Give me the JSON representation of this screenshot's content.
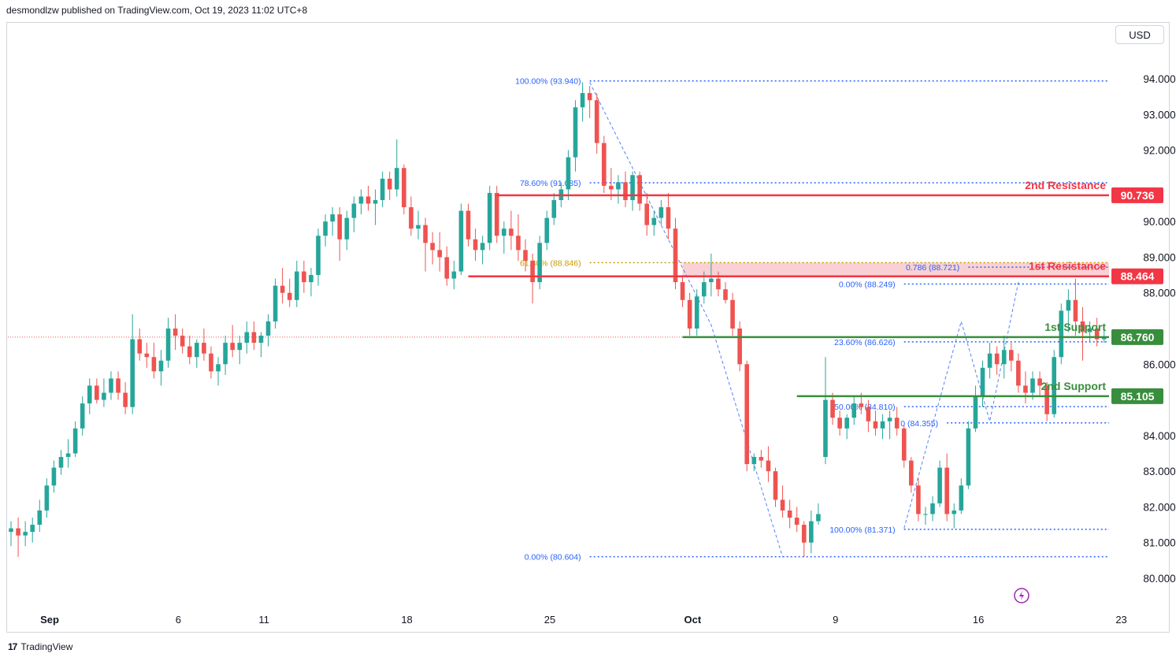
{
  "header": {
    "text": "desmondlzw published on TradingView.com, Oct 19, 2023 11:02 UTC+8"
  },
  "currency_button": "USD",
  "footer": {
    "logo_mark": "17",
    "brand": "TradingView"
  },
  "colors": {
    "up": "#26a69a",
    "down": "#ef5350",
    "resistance": "#f23645",
    "support": "#388e3c",
    "fib": "#2962ff",
    "fib_gold": "#c79a00",
    "zone_fill": "#f8c9cd"
  },
  "chart_data": {
    "type": "candlestick",
    "ylim": [
      79.5,
      95.0
    ],
    "y_ticks": [
      "94.000",
      "93.000",
      "92.000",
      "91.000",
      "90.000",
      "89.000",
      "88.000",
      "87.000",
      "86.000",
      "85.000",
      "84.000",
      "83.000",
      "82.000",
      "81.000",
      "80.000"
    ],
    "x_ticks": [
      {
        "label": "Sep",
        "bar": 1,
        "bold": true
      },
      {
        "label": "6",
        "bar": 19
      },
      {
        "label": "11",
        "bar": 31
      },
      {
        "label": "18",
        "bar": 51
      },
      {
        "label": "25",
        "bar": 71
      },
      {
        "label": "Oct",
        "bar": 91,
        "bold": true
      },
      {
        "label": "9",
        "bar": 111
      },
      {
        "label": "16",
        "bar": 131
      },
      {
        "label": "23",
        "bar": 151
      }
    ],
    "bars_total": 158,
    "candles": [
      [
        81.3,
        81.6,
        80.9,
        81.4
      ],
      [
        81.4,
        81.7,
        80.6,
        81.2
      ],
      [
        81.2,
        81.6,
        80.9,
        81.3
      ],
      [
        81.3,
        81.7,
        81.0,
        81.5
      ],
      [
        81.5,
        82.2,
        81.3,
        81.9
      ],
      [
        81.9,
        82.8,
        81.7,
        82.6
      ],
      [
        82.6,
        83.3,
        82.4,
        83.1
      ],
      [
        83.1,
        83.6,
        82.9,
        83.4
      ],
      [
        83.4,
        83.9,
        83.1,
        83.5
      ],
      [
        83.5,
        84.4,
        83.4,
        84.2
      ],
      [
        84.2,
        85.1,
        84.0,
        84.9
      ],
      [
        84.9,
        85.6,
        84.6,
        85.4
      ],
      [
        85.4,
        85.6,
        84.9,
        85.0
      ],
      [
        85.0,
        85.6,
        84.8,
        85.2
      ],
      [
        85.2,
        85.8,
        85.0,
        85.6
      ],
      [
        85.6,
        85.8,
        85.0,
        85.2
      ],
      [
        85.2,
        85.5,
        84.6,
        84.8
      ],
      [
        84.8,
        87.4,
        84.6,
        86.7
      ],
      [
        86.7,
        87.0,
        86.1,
        86.3
      ],
      [
        86.3,
        86.6,
        85.9,
        86.2
      ],
      [
        86.2,
        86.6,
        85.6,
        85.8
      ],
      [
        85.8,
        86.4,
        85.4,
        86.1
      ],
      [
        86.1,
        87.3,
        85.9,
        87.0
      ],
      [
        87.0,
        87.4,
        86.4,
        86.8
      ],
      [
        86.8,
        87.0,
        86.3,
        86.5
      ],
      [
        86.5,
        86.8,
        86.0,
        86.2
      ],
      [
        86.2,
        86.7,
        85.9,
        86.6
      ],
      [
        86.6,
        87.0,
        86.1,
        86.3
      ],
      [
        86.3,
        86.5,
        85.6,
        85.8
      ],
      [
        85.8,
        86.2,
        85.4,
        86.0
      ],
      [
        86.0,
        86.8,
        85.7,
        86.6
      ],
      [
        86.6,
        87.1,
        86.2,
        86.4
      ],
      [
        86.4,
        86.8,
        86.0,
        86.6
      ],
      [
        86.6,
        87.2,
        86.3,
        86.9
      ],
      [
        86.9,
        87.2,
        86.4,
        86.6
      ],
      [
        86.6,
        86.9,
        86.2,
        86.8
      ],
      [
        86.8,
        87.4,
        86.5,
        87.2
      ],
      [
        87.2,
        88.4,
        87.0,
        88.2
      ],
      [
        88.2,
        88.7,
        87.7,
        88.0
      ],
      [
        88.0,
        88.4,
        87.6,
        87.8
      ],
      [
        87.8,
        88.9,
        87.6,
        88.6
      ],
      [
        88.6,
        88.9,
        88.0,
        88.3
      ],
      [
        88.3,
        88.7,
        87.9,
        88.5
      ],
      [
        88.5,
        89.8,
        88.2,
        89.6
      ],
      [
        89.6,
        90.2,
        89.3,
        90.0
      ],
      [
        90.0,
        90.4,
        89.6,
        90.2
      ],
      [
        90.2,
        90.4,
        88.9,
        89.5
      ],
      [
        89.5,
        90.3,
        89.2,
        90.1
      ],
      [
        90.1,
        90.7,
        89.7,
        90.5
      ],
      [
        90.5,
        90.9,
        90.2,
        90.7
      ],
      [
        90.7,
        91.0,
        90.3,
        90.5
      ],
      [
        90.5,
        90.9,
        89.9,
        90.6
      ],
      [
        90.6,
        91.4,
        90.4,
        91.2
      ],
      [
        91.2,
        91.4,
        90.6,
        90.9
      ],
      [
        90.9,
        92.3,
        90.7,
        91.5
      ],
      [
        91.5,
        91.6,
        90.2,
        90.4
      ],
      [
        90.4,
        90.7,
        89.6,
        89.8
      ],
      [
        89.8,
        90.3,
        89.5,
        89.9
      ],
      [
        89.9,
        90.1,
        88.6,
        89.4
      ],
      [
        89.4,
        89.7,
        88.8,
        89.2
      ],
      [
        89.2,
        89.7,
        88.6,
        89.0
      ],
      [
        89.0,
        89.3,
        88.2,
        88.4
      ],
      [
        88.4,
        88.9,
        88.1,
        88.6
      ],
      [
        88.6,
        90.5,
        88.5,
        90.3
      ],
      [
        90.3,
        90.5,
        89.3,
        89.5
      ],
      [
        89.5,
        89.8,
        88.9,
        89.2
      ],
      [
        89.2,
        89.6,
        88.8,
        89.4
      ],
      [
        89.4,
        91.0,
        89.2,
        90.8
      ],
      [
        90.8,
        91.0,
        89.4,
        89.6
      ],
      [
        89.6,
        90.0,
        89.1,
        89.8
      ],
      [
        89.8,
        90.3,
        89.2,
        89.6
      ],
      [
        89.6,
        90.2,
        88.9,
        89.2
      ],
      [
        89.2,
        89.5,
        88.6,
        88.9
      ],
      [
        88.9,
        89.1,
        87.7,
        88.3
      ],
      [
        88.3,
        89.6,
        88.1,
        89.4
      ],
      [
        89.4,
        90.3,
        89.2,
        90.1
      ],
      [
        90.1,
        90.8,
        89.9,
        90.6
      ],
      [
        90.6,
        91.1,
        90.4,
        90.9
      ],
      [
        90.9,
        92.0,
        90.6,
        91.8
      ],
      [
        91.8,
        93.4,
        91.4,
        93.2
      ],
      [
        93.2,
        93.9,
        92.8,
        93.6
      ],
      [
        93.6,
        93.8,
        92.9,
        93.4
      ],
      [
        93.4,
        93.6,
        91.9,
        92.2
      ],
      [
        92.2,
        92.4,
        90.8,
        91.0
      ],
      [
        91.0,
        91.5,
        90.6,
        90.9
      ],
      [
        90.9,
        91.3,
        90.5,
        91.1
      ],
      [
        91.1,
        91.4,
        90.4,
        90.6
      ],
      [
        90.6,
        91.4,
        90.3,
        91.3
      ],
      [
        91.3,
        91.4,
        90.3,
        90.5
      ],
      [
        90.5,
        90.8,
        89.6,
        89.9
      ],
      [
        89.9,
        90.3,
        89.6,
        90.1
      ],
      [
        90.1,
        90.6,
        89.9,
        90.4
      ],
      [
        90.4,
        90.8,
        89.5,
        89.8
      ],
      [
        89.8,
        90.1,
        88.1,
        88.3
      ],
      [
        88.3,
        88.5,
        87.6,
        87.8
      ],
      [
        87.8,
        88.0,
        86.8,
        87.0
      ],
      [
        87.0,
        88.1,
        86.8,
        87.9
      ],
      [
        87.9,
        88.6,
        87.7,
        88.3
      ],
      [
        88.3,
        89.1,
        87.9,
        88.4
      ],
      [
        88.4,
        88.6,
        87.9,
        88.1
      ],
      [
        88.1,
        88.3,
        87.7,
        87.8
      ],
      [
        87.8,
        88.0,
        86.8,
        87.0
      ],
      [
        87.0,
        87.2,
        85.8,
        86.0
      ],
      [
        86.0,
        86.1,
        83.0,
        83.2
      ],
      [
        83.2,
        83.5,
        83.0,
        83.4
      ],
      [
        83.4,
        83.6,
        83.1,
        83.3
      ],
      [
        83.3,
        83.7,
        82.7,
        83.0
      ],
      [
        83.0,
        83.1,
        82.0,
        82.2
      ],
      [
        82.2,
        82.6,
        81.7,
        81.9
      ],
      [
        81.9,
        82.2,
        81.4,
        81.7
      ],
      [
        81.7,
        82.0,
        81.3,
        81.5
      ],
      [
        81.5,
        81.6,
        80.6,
        81.0
      ],
      [
        81.0,
        81.9,
        80.7,
        81.6
      ],
      [
        81.6,
        82.1,
        81.5,
        81.8
      ],
      [
        83.4,
        86.2,
        83.2,
        85.0
      ],
      [
        85.0,
        85.2,
        84.3,
        84.5
      ],
      [
        84.5,
        84.7,
        84.0,
        84.2
      ],
      [
        84.2,
        84.6,
        83.9,
        84.5
      ],
      [
        84.5,
        85.1,
        84.3,
        84.9
      ],
      [
        84.9,
        85.2,
        84.6,
        84.8
      ],
      [
        84.8,
        85.0,
        84.1,
        84.4
      ],
      [
        84.4,
        84.7,
        84.0,
        84.2
      ],
      [
        84.2,
        84.6,
        83.9,
        84.4
      ],
      [
        84.4,
        84.7,
        83.9,
        84.5
      ],
      [
        84.5,
        84.8,
        84.0,
        84.2
      ],
      [
        84.2,
        84.3,
        83.1,
        83.3
      ],
      [
        83.3,
        83.4,
        82.4,
        82.6
      ],
      [
        82.6,
        82.8,
        81.6,
        81.8
      ],
      [
        81.8,
        82.0,
        81.5,
        81.8
      ],
      [
        81.8,
        82.3,
        81.6,
        82.1
      ],
      [
        82.1,
        83.3,
        82.0,
        83.1
      ],
      [
        83.1,
        83.5,
        81.6,
        81.8
      ],
      [
        81.8,
        82.1,
        81.4,
        81.9
      ],
      [
        81.9,
        82.8,
        81.8,
        82.6
      ],
      [
        82.6,
        84.4,
        82.5,
        84.2
      ],
      [
        84.2,
        85.4,
        84.1,
        85.1
      ],
      [
        85.1,
        86.1,
        84.8,
        85.9
      ],
      [
        85.9,
        86.6,
        85.6,
        86.3
      ],
      [
        86.3,
        86.5,
        85.7,
        86.0
      ],
      [
        86.0,
        86.8,
        85.6,
        86.4
      ],
      [
        86.4,
        86.6,
        85.8,
        86.1
      ],
      [
        86.1,
        86.3,
        85.2,
        85.4
      ],
      [
        85.4,
        85.8,
        84.9,
        85.2
      ],
      [
        85.2,
        85.8,
        85.0,
        85.6
      ],
      [
        85.6,
        85.8,
        85.1,
        85.4
      ],
      [
        85.4,
        85.5,
        84.4,
        84.6
      ],
      [
        84.6,
        86.4,
        84.5,
        86.2
      ],
      [
        86.2,
        87.7,
        86.0,
        87.5
      ],
      [
        87.5,
        88.1,
        86.9,
        87.8
      ],
      [
        87.8,
        88.4,
        86.8,
        87.2
      ],
      [
        87.2,
        87.6,
        86.1,
        86.9
      ],
      [
        86.9,
        87.2,
        86.6,
        87.0
      ],
      [
        87.0,
        87.3,
        86.5,
        86.7
      ],
      [
        86.7,
        87.1,
        86.6,
        86.76
      ]
    ],
    "levels": [
      {
        "name": "2nd Resistance",
        "value": 90.736,
        "label": "90.736",
        "color": "resistance",
        "from_bar": 68
      },
      {
        "name": "1st Resistance",
        "value": 88.464,
        "label": "88.464",
        "color": "resistance",
        "from_bar": 64
      },
      {
        "name": "1st Support",
        "value": 86.76,
        "label": "86.760",
        "color": "support",
        "from_bar": 94
      },
      {
        "name": "2nd Support",
        "value": 85.105,
        "label": "85.105",
        "color": "support",
        "from_bar": 110
      }
    ],
    "resistance_zone": [
      88.464,
      88.846
    ],
    "last_price_line": 86.76,
    "fib_lines": [
      {
        "text": "100.00% (93.940)",
        "value": 93.94,
        "from_bar": 81,
        "to_bar": 155,
        "label_anchor": "end",
        "label_bar": 80,
        "color": "fib"
      },
      {
        "text": "78.60% (91.085)",
        "value": 91.085,
        "from_bar": 81,
        "to_bar": 155,
        "label_anchor": "end",
        "label_bar": 80,
        "color": "fib"
      },
      {
        "text": "61.80% (88.846)",
        "value": 88.846,
        "from_bar": 81,
        "to_bar": 155,
        "label_anchor": "end",
        "label_bar": 80,
        "color": "fib_gold"
      },
      {
        "text": "0.00% (80.604)",
        "value": 80.604,
        "from_bar": 81,
        "to_bar": 155,
        "label_anchor": "end",
        "label_bar": 80,
        "color": "fib"
      },
      {
        "text": "0.786 (88.721)",
        "value": 88.721,
        "from_bar": 134,
        "to_bar": 155,
        "label_anchor": "end",
        "label_bar": 133,
        "color": "fib"
      },
      {
        "text": "0.00% (88.249)",
        "value": 88.249,
        "from_bar": 125,
        "to_bar": 155,
        "label_anchor": "end",
        "label_bar": 124,
        "color": "fib"
      },
      {
        "text": "23.60% (86.626)",
        "value": 86.626,
        "from_bar": 125,
        "to_bar": 155,
        "label_anchor": "end",
        "label_bar": 124,
        "color": "fib"
      },
      {
        "text": "50.00% (84.810)",
        "value": 84.81,
        "from_bar": 125,
        "to_bar": 155,
        "label_anchor": "end",
        "label_bar": 124,
        "color": "fib"
      },
      {
        "text": "0 (84.355)",
        "value": 84.355,
        "from_bar": 131,
        "to_bar": 155,
        "label_anchor": "end",
        "label_bar": 130,
        "color": "fib"
      },
      {
        "text": "100.00% (81.371)",
        "value": 81.371,
        "from_bar": 125,
        "to_bar": 155,
        "label_anchor": "end",
        "label_bar": 124,
        "color": "fib"
      }
    ],
    "dashed_paths": [
      [
        [
          81,
          93.9
        ],
        [
          98,
          87.1
        ],
        [
          108,
          80.6
        ]
      ],
      [
        [
          125,
          81.4
        ],
        [
          133,
          87.2
        ],
        [
          137,
          84.4
        ],
        [
          141,
          88.3
        ]
      ]
    ],
    "grid": false
  }
}
